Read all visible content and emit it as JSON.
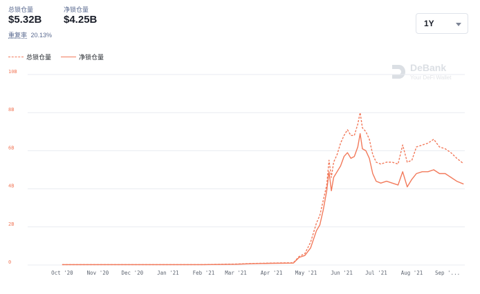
{
  "stats": {
    "total_label": "总锁仓量",
    "total_value": "$5.32B",
    "net_label": "净锁仓量",
    "net_value": "$4.25B",
    "ratio_label": "重复率",
    "ratio_value": "20.13%"
  },
  "range_select": {
    "value": "1Y"
  },
  "watermark": {
    "name": "DeBank",
    "tagline": "Your DeFi Wallet"
  },
  "colors": {
    "series": "#f2795a",
    "grid": "#e8ebf0",
    "axis_text": "#5d6470"
  },
  "chart_data": {
    "type": "line",
    "x_tick_labels": [
      "Oct '20",
      "Nov '20",
      "Dec '20",
      "Jan '21",
      "Feb '21",
      "Mar '21",
      "Apr '21",
      "May '21",
      "Jun '21",
      "Jul '21",
      "Aug '21",
      "Sep '..."
    ],
    "y_tick_labels": [
      "0",
      "2B",
      "4B",
      "6B",
      "8B",
      "10B"
    ],
    "ylim": [
      0,
      10
    ],
    "grid": "horizontal",
    "legend_position": "top-left",
    "series": [
      {
        "name": "总锁仓量",
        "style": "dashed",
        "points": [
          [
            "2020-10-01",
            0.02
          ],
          [
            "2020-12-01",
            0.02
          ],
          [
            "2021-02-01",
            0.02
          ],
          [
            "2021-03-01",
            0.05
          ],
          [
            "2021-03-15",
            0.08
          ],
          [
            "2021-04-01",
            0.1
          ],
          [
            "2021-04-20",
            0.12
          ],
          [
            "2021-04-25",
            0.45
          ],
          [
            "2021-04-30",
            0.6
          ],
          [
            "2021-05-05",
            1.2
          ],
          [
            "2021-05-10",
            2.2
          ],
          [
            "2021-05-13",
            2.6
          ],
          [
            "2021-05-16",
            3.4
          ],
          [
            "2021-05-19",
            4.2
          ],
          [
            "2021-05-21",
            5.5
          ],
          [
            "2021-05-23",
            4.6
          ],
          [
            "2021-05-25",
            5.4
          ],
          [
            "2021-05-28",
            5.8
          ],
          [
            "2021-05-31",
            6.4
          ],
          [
            "2021-06-03",
            6.8
          ],
          [
            "2021-06-06",
            7.1
          ],
          [
            "2021-06-09",
            6.8
          ],
          [
            "2021-06-12",
            6.8
          ],
          [
            "2021-06-15",
            7.4
          ],
          [
            "2021-06-17",
            8.0
          ],
          [
            "2021-06-19",
            7.2
          ],
          [
            "2021-06-22",
            7.0
          ],
          [
            "2021-06-25",
            6.6
          ],
          [
            "2021-06-28",
            5.8
          ],
          [
            "2021-07-01",
            5.4
          ],
          [
            "2021-07-05",
            5.3
          ],
          [
            "2021-07-10",
            5.4
          ],
          [
            "2021-07-15",
            5.4
          ],
          [
            "2021-07-20",
            5.3
          ],
          [
            "2021-07-24",
            6.3
          ],
          [
            "2021-07-28",
            5.4
          ],
          [
            "2021-08-01",
            5.5
          ],
          [
            "2021-08-05",
            6.2
          ],
          [
            "2021-08-10",
            6.3
          ],
          [
            "2021-08-15",
            6.4
          ],
          [
            "2021-08-20",
            6.6
          ],
          [
            "2021-08-25",
            6.2
          ],
          [
            "2021-08-30",
            6.1
          ],
          [
            "2021-09-04",
            5.9
          ],
          [
            "2021-09-09",
            5.6
          ],
          [
            "2021-09-15",
            5.32
          ]
        ]
      },
      {
        "name": "净锁仓量",
        "style": "solid",
        "points": [
          [
            "2020-10-01",
            0.02
          ],
          [
            "2020-12-01",
            0.02
          ],
          [
            "2021-02-01",
            0.02
          ],
          [
            "2021-03-01",
            0.04
          ],
          [
            "2021-03-15",
            0.07
          ],
          [
            "2021-04-01",
            0.09
          ],
          [
            "2021-04-20",
            0.1
          ],
          [
            "2021-04-25",
            0.4
          ],
          [
            "2021-04-30",
            0.5
          ],
          [
            "2021-05-05",
            0.9
          ],
          [
            "2021-05-10",
            1.8
          ],
          [
            "2021-05-13",
            2.1
          ],
          [
            "2021-05-16",
            2.9
          ],
          [
            "2021-05-19",
            3.9
          ],
          [
            "2021-05-21",
            4.9
          ],
          [
            "2021-05-23",
            3.9
          ],
          [
            "2021-05-25",
            4.6
          ],
          [
            "2021-05-28",
            4.9
          ],
          [
            "2021-05-31",
            5.2
          ],
          [
            "2021-06-03",
            5.7
          ],
          [
            "2021-06-06",
            5.9
          ],
          [
            "2021-06-09",
            5.6
          ],
          [
            "2021-06-12",
            5.7
          ],
          [
            "2021-06-15",
            6.2
          ],
          [
            "2021-06-17",
            6.9
          ],
          [
            "2021-06-19",
            6.1
          ],
          [
            "2021-06-22",
            6.0
          ],
          [
            "2021-06-25",
            5.6
          ],
          [
            "2021-06-28",
            4.8
          ],
          [
            "2021-07-01",
            4.4
          ],
          [
            "2021-07-05",
            4.3
          ],
          [
            "2021-07-10",
            4.4
          ],
          [
            "2021-07-15",
            4.3
          ],
          [
            "2021-07-20",
            4.2
          ],
          [
            "2021-07-24",
            4.9
          ],
          [
            "2021-07-28",
            4.1
          ],
          [
            "2021-08-01",
            4.5
          ],
          [
            "2021-08-05",
            4.8
          ],
          [
            "2021-08-10",
            4.9
          ],
          [
            "2021-08-15",
            4.9
          ],
          [
            "2021-08-20",
            5.0
          ],
          [
            "2021-08-25",
            4.8
          ],
          [
            "2021-08-30",
            4.8
          ],
          [
            "2021-09-04",
            4.6
          ],
          [
            "2021-09-09",
            4.4
          ],
          [
            "2021-09-15",
            4.25
          ]
        ]
      }
    ]
  }
}
